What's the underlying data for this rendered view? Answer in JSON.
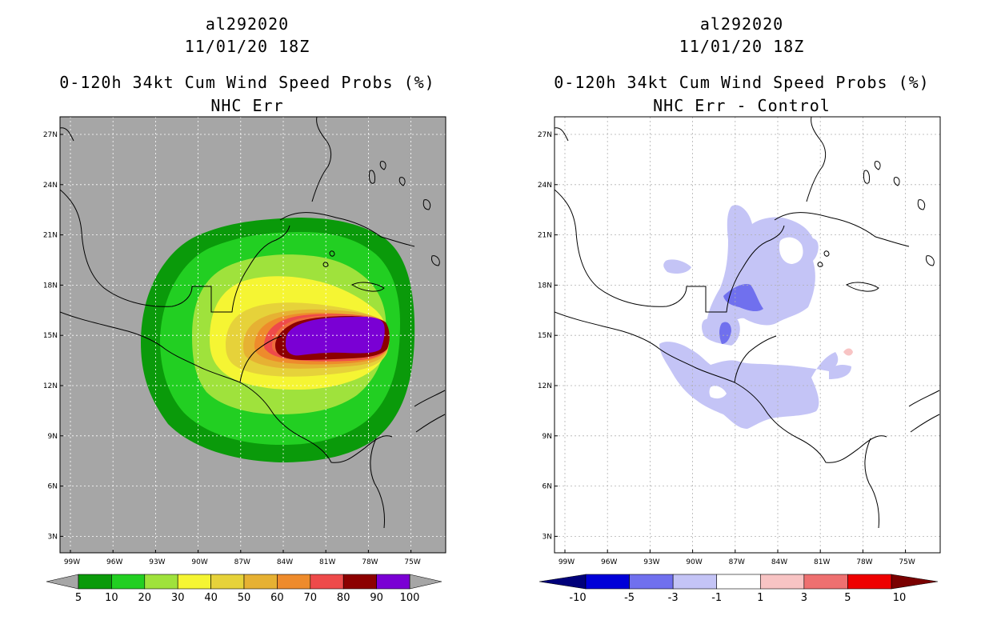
{
  "panels": [
    {
      "id": "left",
      "title_storm": "al292020",
      "title_date": "11/01/20 18Z",
      "title_product": "0-120h 34kt Cum Wind Speed Probs (%)",
      "title_sub": "NHC Err",
      "background_color": "#a6a6a6",
      "gridline_color": "#ffffff",
      "colorbar": {
        "labels": [
          "5",
          "10",
          "20",
          "30",
          "40",
          "50",
          "60",
          "70",
          "80",
          "90",
          "100"
        ],
        "colors": [
          "#0a9a0a",
          "#22cf22",
          "#9fe23c",
          "#f5f533",
          "#e6d23a",
          "#e6b133",
          "#ee8b2c",
          "#ee4a4a",
          "#8c0000",
          "#7a00d4"
        ],
        "end_low_color": "#a6a6a6",
        "end_high_color": "#a6a6a6"
      }
    },
    {
      "id": "right",
      "title_storm": "al292020",
      "title_date": "11/01/20 18Z",
      "title_product": "0-120h 34kt Cum Wind Speed Probs (%)",
      "title_sub": "NHC Err - Control",
      "background_color": "#ffffff",
      "gridline_color": "#b0b0b0",
      "colorbar": {
        "labels": [
          "-10",
          "-5",
          "-3",
          "-1",
          "1",
          "3",
          "5",
          "10"
        ],
        "colors": [
          "#0000d8",
          "#7070ee",
          "#c4c4f6",
          "#ffffff",
          "#f8c4c4",
          "#ee7070",
          "#ee0000"
        ],
        "end_low_color": "#00007a",
        "end_high_color": "#7a0000"
      }
    }
  ],
  "map": {
    "lon_labels": [
      "99W",
      "96W",
      "93W",
      "90W",
      "87W",
      "84W",
      "81W",
      "78W",
      "75W"
    ],
    "lat_labels": [
      "27N",
      "24N",
      "21N",
      "18N",
      "15N",
      "12N",
      "9N",
      "6N",
      "3N"
    ]
  }
}
